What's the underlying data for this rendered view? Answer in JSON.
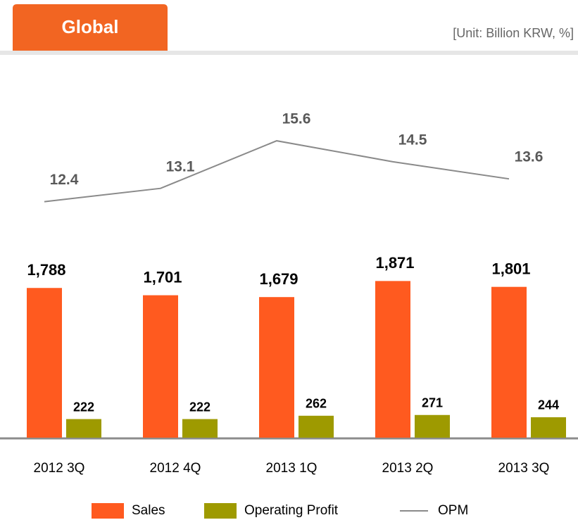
{
  "chart_data": {
    "type": "bar_line",
    "title": "Global",
    "subtitle": "[Unit: Billion KRW, %]",
    "categories": [
      "2012 3Q",
      "2012 4Q",
      "2013 1Q",
      "2013 2Q",
      "2013 3Q"
    ],
    "series": [
      {
        "name": "Sales",
        "type": "bar",
        "color": "#ff5a1f",
        "values": [
          1788,
          1701,
          1679,
          1871,
          1801
        ],
        "value_labels": [
          "1,788",
          "1,701",
          "1,679",
          "1,871",
          "1,801"
        ]
      },
      {
        "name": "Operating Profit",
        "type": "bar",
        "color": "#9e9a00",
        "values": [
          222,
          222,
          262,
          271,
          244
        ]
      },
      {
        "name": "OPM",
        "type": "line",
        "axis": "y2",
        "color": "#8a8a8a",
        "values": [
          12.4,
          13.1,
          15.6,
          14.5,
          13.6
        ]
      }
    ],
    "ylim": [
      0,
      5000
    ],
    "y2lim": [
      0,
      22
    ],
    "legend": "bottom"
  }
}
